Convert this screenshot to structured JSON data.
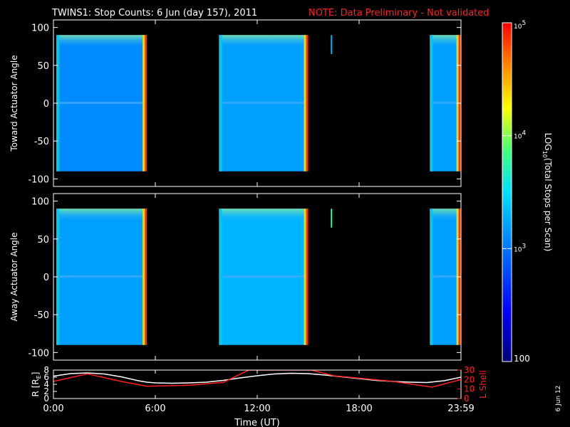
{
  "title": {
    "main": "TWINS1: Stop Counts:  6 Jun (day 157), 2011",
    "note": "NOTE: Data Preliminary - Not validated",
    "note_color": "#ff2020"
  },
  "stamp": "6 Jun 12",
  "chart_data": [
    {
      "type": "heatmap",
      "panel": "toward",
      "ylabel": "Toward Actuator Angle",
      "ylim": [
        -110,
        110
      ],
      "yticks": [
        -100,
        -50,
        0,
        50,
        100
      ],
      "xlim_hours": [
        0,
        24
      ],
      "data_angle_range": [
        -90,
        90
      ],
      "intervals": [
        {
          "start": "0:10",
          "end": "5:30",
          "level_log10": 3.1
        },
        {
          "start": "9:45",
          "end": "15:00",
          "level_log10": 3.2
        },
        {
          "start": "16:20",
          "end": "16:25",
          "level_log10": 3.3,
          "angle_range": [
            65,
            90
          ]
        },
        {
          "start": "22:10",
          "end": "23:59",
          "level_log10": 3.2
        }
      ]
    },
    {
      "type": "heatmap",
      "panel": "away",
      "ylabel": "Away Actuator Angle",
      "ylim": [
        -110,
        110
      ],
      "yticks": [
        -100,
        -50,
        0,
        50,
        100
      ],
      "xlim_hours": [
        0,
        24
      ],
      "data_angle_range": [
        -90,
        90
      ],
      "intervals": [
        {
          "start": "0:10",
          "end": "5:30",
          "level_log10": 3.2
        },
        {
          "start": "9:45",
          "end": "15:00",
          "level_log10": 3.3
        },
        {
          "start": "16:20",
          "end": "16:25",
          "level_log10": 3.8,
          "angle_range": [
            65,
            90
          ]
        },
        {
          "start": "22:10",
          "end": "23:59",
          "level_log10": 3.2
        }
      ]
    },
    {
      "type": "line",
      "panel": "ephemeris",
      "xlabel": "Time (UT)",
      "xticks": [
        "0:00",
        "6:00",
        "12:00",
        "18:00",
        "23:59"
      ],
      "ylabel_left": "R [R",
      "ylabel_left_sub": "E",
      "ylabel_left_end": "]",
      "ylabel_right": "L Shell",
      "ylim_left": [
        0,
        8
      ],
      "yticks_left": [
        0,
        2,
        4,
        6,
        8
      ],
      "ylim_right": [
        0,
        30
      ],
      "yticks_right": [
        0,
        10,
        20,
        30
      ],
      "series": [
        {
          "axis": "left",
          "color": "#ffffff",
          "x": [
            0,
            1,
            2,
            3,
            4,
            5,
            5.5,
            6,
            7,
            8,
            9,
            10,
            11,
            12,
            13,
            14,
            15,
            16,
            17,
            18,
            19,
            20,
            21,
            22,
            23,
            24
          ],
          "y": [
            6.3,
            7.0,
            7.2,
            6.9,
            6.1,
            5.0,
            4.6,
            4.4,
            4.3,
            4.4,
            4.6,
            5.1,
            5.8,
            6.4,
            6.9,
            7.1,
            7.0,
            6.6,
            6.1,
            5.6,
            5.1,
            4.8,
            4.6,
            4.5,
            5.0,
            6.0
          ]
        },
        {
          "axis": "right",
          "color": "#ff2020",
          "x": [
            0,
            2,
            4,
            5.5,
            8,
            10,
            11.5,
            15.2,
            16.5,
            20,
            22.3,
            24
          ],
          "y": [
            18,
            26,
            18,
            13,
            14,
            17,
            30,
            30,
            24,
            18,
            12,
            20
          ]
        }
      ]
    }
  ],
  "colorbar": {
    "label_prefix": "LOG",
    "label_sub": "10",
    "label_suffix": "(Total Stops per Scan)",
    "ticks": [
      {
        "base": "10",
        "exp": "5",
        "value": 5
      },
      {
        "base": "10",
        "exp": "4",
        "value": 4
      },
      {
        "base": "10",
        "exp": "3",
        "value": 3
      },
      {
        "base": "100",
        "exp": "",
        "value": 2
      }
    ],
    "range_log10": [
      2,
      5
    ]
  }
}
